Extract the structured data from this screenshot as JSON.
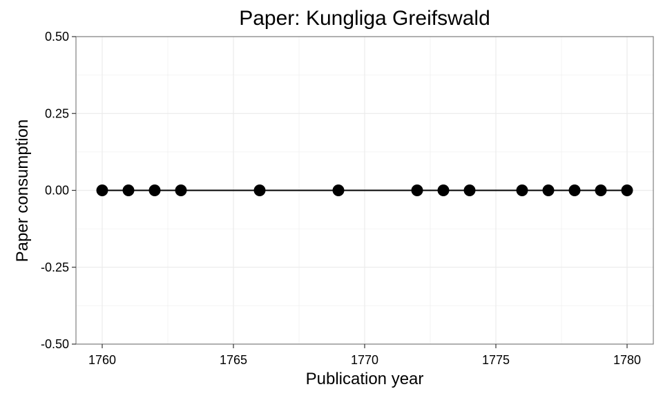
{
  "chart_data": {
    "type": "line",
    "title": "Paper: Kungliga Greifswald",
    "xlabel": "Publication year",
    "ylabel": "Paper consumption",
    "xlim": [
      1759,
      1781
    ],
    "ylim": [
      -0.5,
      0.5
    ],
    "x_ticks": [
      1760,
      1765,
      1770,
      1775,
      1780
    ],
    "x_tick_labels": [
      "1760",
      "1765",
      "1770",
      "1775",
      "1780"
    ],
    "y_ticks": [
      -0.5,
      -0.25,
      0,
      0.25,
      0.5
    ],
    "y_tick_labels": [
      "-0.50",
      "-0.25",
      "0.00",
      "0.25",
      "0.50"
    ],
    "grid": true,
    "series": [
      {
        "x": [
          1760,
          1761,
          1762,
          1763,
          1766,
          1769,
          1772,
          1773,
          1774,
          1776,
          1777,
          1778,
          1779,
          1780
        ],
        "y": [
          0,
          0,
          0,
          0,
          0,
          0,
          0,
          0,
          0,
          0,
          0,
          0,
          0,
          0
        ]
      }
    ],
    "colors": {
      "line": "#000000",
      "point": "#000000",
      "grid": "#ebebeb",
      "panel_border": "#7f7f7f"
    }
  }
}
